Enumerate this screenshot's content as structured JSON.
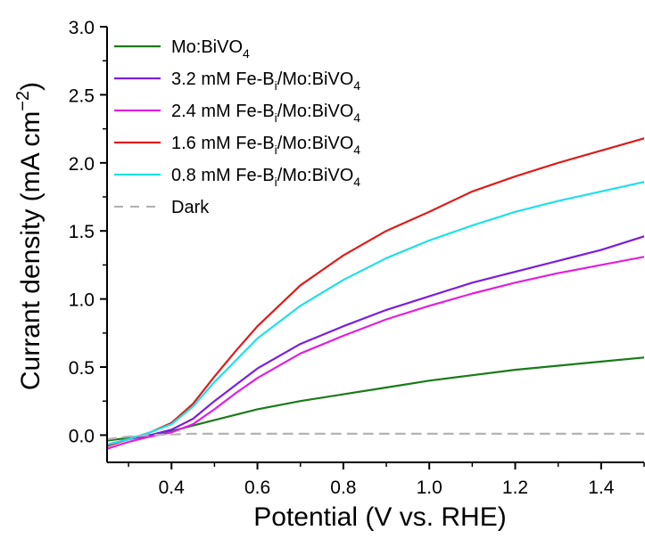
{
  "chart_data": {
    "type": "line",
    "xlabel": "Potential (V vs. RHE)",
    "ylabel": "Currant density (mA cm−2)",
    "ylabel_parts": {
      "main": "Currant density (mA cm",
      "sup": "−2",
      "close": ")"
    },
    "xlim": [
      0.25,
      1.5
    ],
    "ylim": [
      -0.2,
      3.0
    ],
    "x_ticks": [
      0.4,
      0.6,
      0.8,
      1.0,
      1.2,
      1.4
    ],
    "x_tick_labels": [
      "0.4",
      "0.6",
      "0.8",
      "1.0",
      "1.2",
      "1.4"
    ],
    "y_ticks": [
      0.0,
      0.5,
      1.0,
      1.5,
      2.0,
      2.5,
      3.0
    ],
    "y_tick_labels": [
      "0.0",
      "0.5",
      "1.0",
      "1.5",
      "2.0",
      "2.5",
      "3.0"
    ],
    "grid": false,
    "legend_position": "top-left",
    "series": [
      {
        "name": "Mo:BiVO4",
        "label_parts": {
          "main": "Mo:BiVO",
          "sub": "4",
          "tail": ""
        },
        "color": "#1a7a1a",
        "style": "solid",
        "x": [
          0.25,
          0.3,
          0.35,
          0.4,
          0.45,
          0.5,
          0.6,
          0.7,
          0.8,
          0.9,
          1.0,
          1.1,
          1.2,
          1.3,
          1.4,
          1.5
        ],
        "y": [
          -0.04,
          -0.02,
          0.0,
          0.03,
          0.07,
          0.11,
          0.19,
          0.25,
          0.3,
          0.35,
          0.4,
          0.44,
          0.48,
          0.51,
          0.54,
          0.57
        ]
      },
      {
        "name": "3.2 mM Fe-Bi/Mo:BiVO4",
        "label_parts": {
          "main": "3.2 mM Fe-B",
          "sub": "i",
          "tail": "/Mo:BiVO",
          "sub2": "4"
        },
        "color": "#7a1fdc",
        "style": "solid",
        "x": [
          0.25,
          0.3,
          0.35,
          0.4,
          0.45,
          0.5,
          0.55,
          0.6,
          0.7,
          0.8,
          0.9,
          1.0,
          1.1,
          1.2,
          1.3,
          1.4,
          1.5
        ],
        "y": [
          -0.07,
          -0.03,
          0.0,
          0.04,
          0.12,
          0.25,
          0.37,
          0.49,
          0.67,
          0.8,
          0.92,
          1.02,
          1.12,
          1.2,
          1.28,
          1.36,
          1.46
        ]
      },
      {
        "name": "2.4 mM Fe-Bi/Mo:BiVO4",
        "label_parts": {
          "main": "2.4 mM Fe-B",
          "sub": "i",
          "tail": "/Mo:BiVO",
          "sub2": "4"
        },
        "color": "#e020e0",
        "style": "solid",
        "x": [
          0.25,
          0.3,
          0.35,
          0.4,
          0.45,
          0.5,
          0.55,
          0.6,
          0.7,
          0.8,
          0.9,
          1.0,
          1.1,
          1.2,
          1.3,
          1.4,
          1.5
        ],
        "y": [
          -0.1,
          -0.05,
          -0.01,
          0.02,
          0.08,
          0.19,
          0.31,
          0.42,
          0.6,
          0.73,
          0.85,
          0.95,
          1.04,
          1.12,
          1.19,
          1.25,
          1.31
        ]
      },
      {
        "name": "1.6 mM Fe-Bi/Mo:BiVO4",
        "label_parts": {
          "main": "1.6 mM Fe-B",
          "sub": "i",
          "tail": "/Mo:BiVO",
          "sub2": "4"
        },
        "color": "#dd1c1c",
        "style": "solid",
        "x": [
          0.25,
          0.3,
          0.35,
          0.4,
          0.45,
          0.5,
          0.55,
          0.6,
          0.7,
          0.8,
          0.9,
          1.0,
          1.1,
          1.2,
          1.3,
          1.4,
          1.5
        ],
        "y": [
          -0.08,
          -0.03,
          0.02,
          0.09,
          0.23,
          0.43,
          0.62,
          0.8,
          1.1,
          1.32,
          1.5,
          1.64,
          1.79,
          1.9,
          2.0,
          2.09,
          2.18
        ]
      },
      {
        "name": "0.8 mM Fe-Bi/Mo:BiVO4",
        "label_parts": {
          "main": "0.8 mM Fe-B",
          "sub": "i",
          "tail": "/Mo:BiVO",
          "sub2": "4"
        },
        "color": "#1fe0e8",
        "style": "solid",
        "x": [
          0.25,
          0.3,
          0.35,
          0.4,
          0.45,
          0.5,
          0.55,
          0.6,
          0.7,
          0.8,
          0.9,
          1.0,
          1.1,
          1.2,
          1.3,
          1.4,
          1.5
        ],
        "y": [
          -0.07,
          -0.03,
          0.02,
          0.08,
          0.21,
          0.39,
          0.55,
          0.71,
          0.95,
          1.14,
          1.3,
          1.43,
          1.54,
          1.64,
          1.72,
          1.79,
          1.86
        ]
      },
      {
        "name": "Dark",
        "label_parts": {
          "main": "Dark",
          "sub": "",
          "tail": ""
        },
        "color": "#b4b4b4",
        "style": "dashed",
        "x": [
          0.25,
          0.3,
          0.35,
          0.4,
          0.45,
          0.6,
          0.8,
          1.0,
          1.2,
          1.4,
          1.5
        ],
        "y": [
          -0.03,
          -0.01,
          0.0,
          0.005,
          0.01,
          0.01,
          0.01,
          0.01,
          0.01,
          0.01,
          0.01
        ]
      }
    ]
  }
}
